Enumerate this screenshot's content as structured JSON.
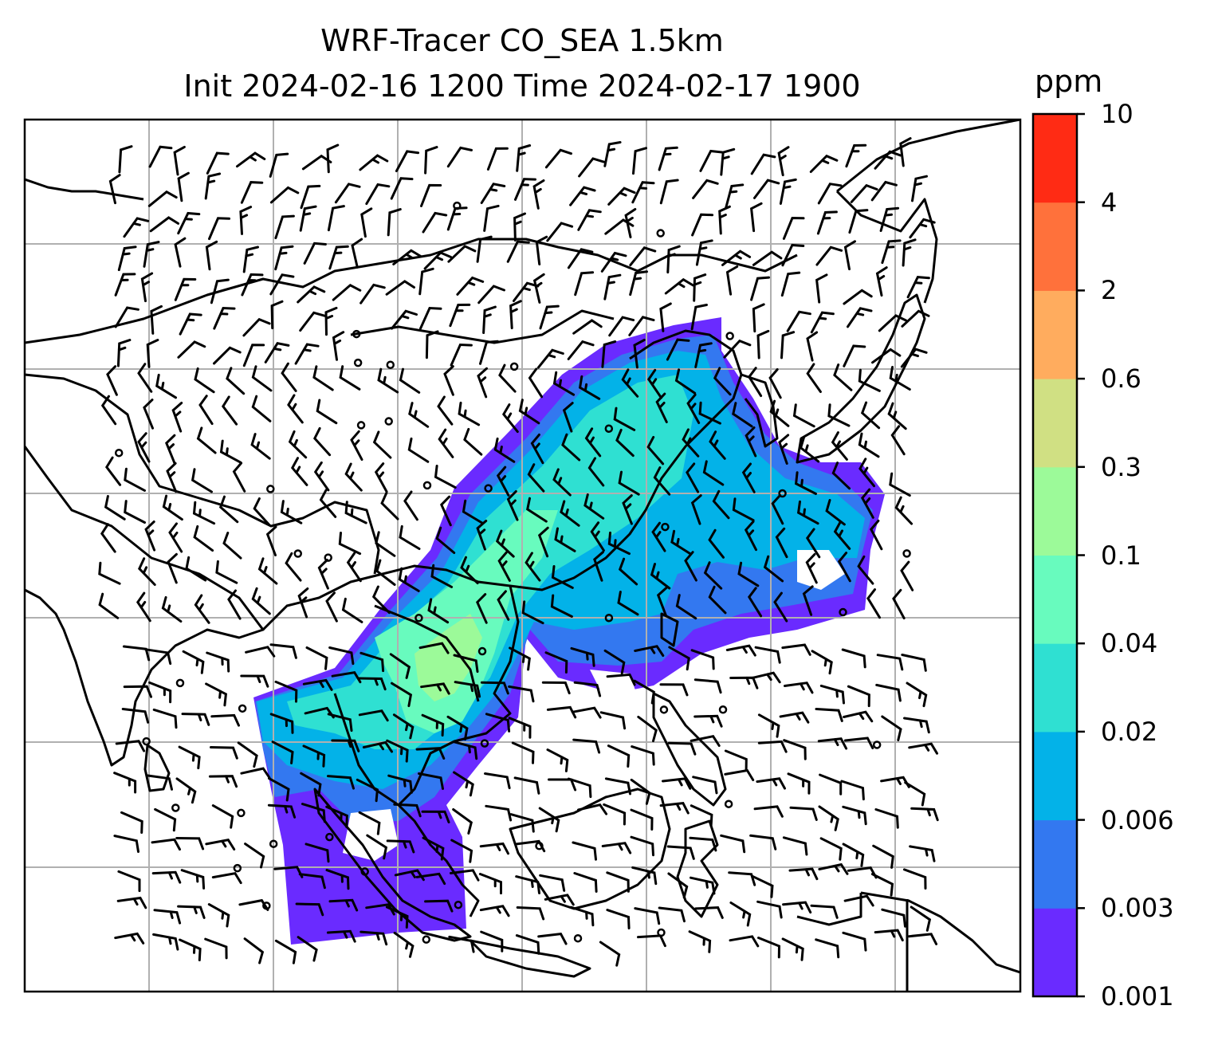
{
  "title": {
    "line1": "WRF-Tracer CO_SEA 1.5km",
    "line2": "Init 2024-02-16 1200 Time 2024-02-17 1900"
  },
  "colorbar": {
    "unit": "ppm",
    "levels": [
      "0.001",
      "0.003",
      "0.006",
      "0.02",
      "0.04",
      "0.1",
      "0.3",
      "0.6",
      "2",
      "4",
      "10"
    ],
    "colors": [
      "#6a2bff",
      "#3378f0",
      "#03b2e8",
      "#2fe0d2",
      "#68fbbe",
      "#9cfa99",
      "#d0e083",
      "#ffac5e",
      "#ff713b",
      "#ff2b14"
    ]
  },
  "map": {
    "gridlines": true,
    "overlay": "wind-barbs",
    "background_color": "#ffffff",
    "coast_color": "#000000"
  }
}
